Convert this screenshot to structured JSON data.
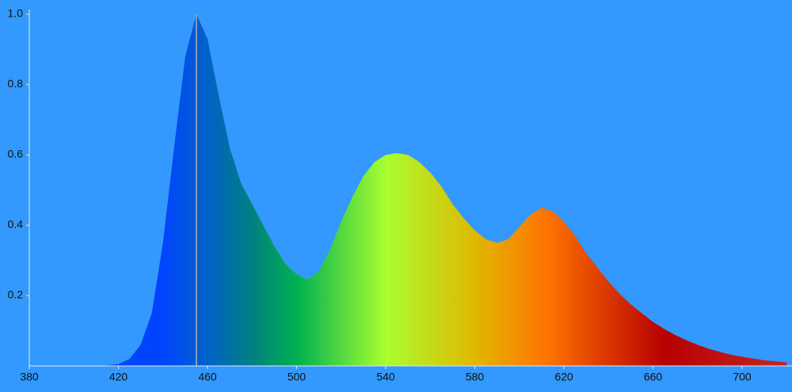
{
  "chart_data": {
    "type": "area",
    "x": [
      410,
      415,
      420,
      425,
      430,
      435,
      440,
      445,
      450,
      455,
      460,
      465,
      470,
      475,
      480,
      485,
      490,
      495,
      500,
      505,
      510,
      515,
      520,
      525,
      530,
      535,
      540,
      545,
      550,
      555,
      560,
      565,
      570,
      575,
      580,
      585,
      590,
      595,
      600,
      605,
      610,
      615,
      620,
      625,
      630,
      635,
      640,
      645,
      650,
      655,
      660,
      665,
      670,
      675,
      680,
      685,
      690,
      695,
      700,
      710,
      720
    ],
    "values": [
      0,
      0.002,
      0.005,
      0.02,
      0.06,
      0.15,
      0.35,
      0.62,
      0.88,
      1.0,
      0.93,
      0.77,
      0.62,
      0.52,
      0.46,
      0.4,
      0.34,
      0.29,
      0.26,
      0.245,
      0.27,
      0.33,
      0.41,
      0.48,
      0.54,
      0.58,
      0.6,
      0.605,
      0.6,
      0.58,
      0.55,
      0.51,
      0.46,
      0.42,
      0.385,
      0.36,
      0.35,
      0.36,
      0.395,
      0.43,
      0.45,
      0.44,
      0.41,
      0.37,
      0.32,
      0.28,
      0.24,
      0.205,
      0.175,
      0.15,
      0.125,
      0.105,
      0.088,
      0.073,
      0.06,
      0.049,
      0.04,
      0.032,
      0.026,
      0.016,
      0.01
    ],
    "color_stops": [
      {
        "x": 440,
        "color": "#0044ff"
      },
      {
        "x": 460,
        "color": "#0062c8"
      },
      {
        "x": 480,
        "color": "#008080"
      },
      {
        "x": 500,
        "color": "#00b050"
      },
      {
        "x": 540,
        "color": "#a8ff30"
      },
      {
        "x": 580,
        "color": "#e0b800"
      },
      {
        "x": 612,
        "color": "#ff7400"
      },
      {
        "x": 665,
        "color": "#b80000"
      },
      {
        "x": 710,
        "color": "#c02020"
      }
    ],
    "vline": 455,
    "xlim": [
      380,
      722.4
    ],
    "ylim": [
      0,
      1
    ],
    "xticks": [
      380,
      420,
      460,
      500,
      540,
      580,
      620,
      660,
      700
    ],
    "yticks": [
      0.2,
      0.4,
      0.6,
      0.8,
      {
        "value": 1,
        "label": "1.0"
      }
    ],
    "background": "#3399ff"
  }
}
